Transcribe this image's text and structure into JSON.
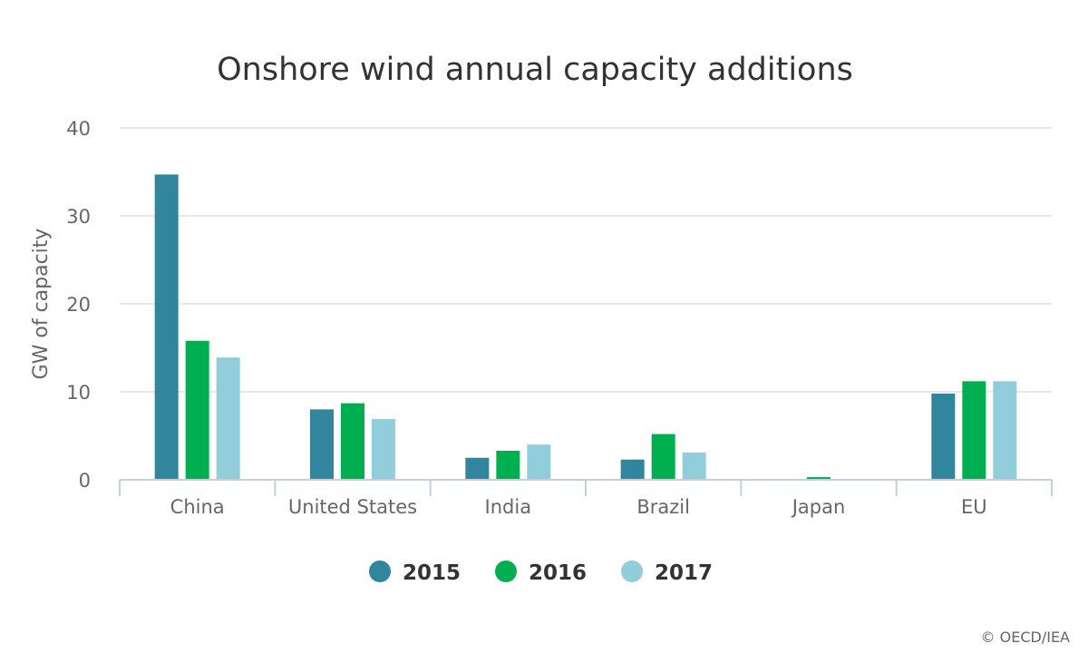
{
  "chart_data": {
    "type": "bar",
    "title": "Onshore wind annual capacity additions",
    "ylabel": "GW of capacity",
    "xlabel": "",
    "ylim": [
      0,
      40
    ],
    "yticks": [
      0,
      10,
      20,
      30,
      40
    ],
    "grid": true,
    "legend_position": "bottom-center",
    "categories": [
      "China",
      "United States",
      "India",
      "Brazil",
      "Japan",
      "EU"
    ],
    "series": [
      {
        "name": "2015",
        "color": "#31859c",
        "values": [
          34.7,
          8.0,
          2.5,
          2.3,
          0.0,
          9.8
        ]
      },
      {
        "name": "2016",
        "color": "#00b050",
        "values": [
          15.8,
          8.7,
          3.3,
          5.2,
          0.3,
          11.2
        ]
      },
      {
        "name": "2017",
        "color": "#92cddc",
        "values": [
          13.9,
          6.9,
          4.0,
          3.1,
          0.0,
          11.2
        ]
      }
    ]
  },
  "credit": "© OECD/IEA"
}
